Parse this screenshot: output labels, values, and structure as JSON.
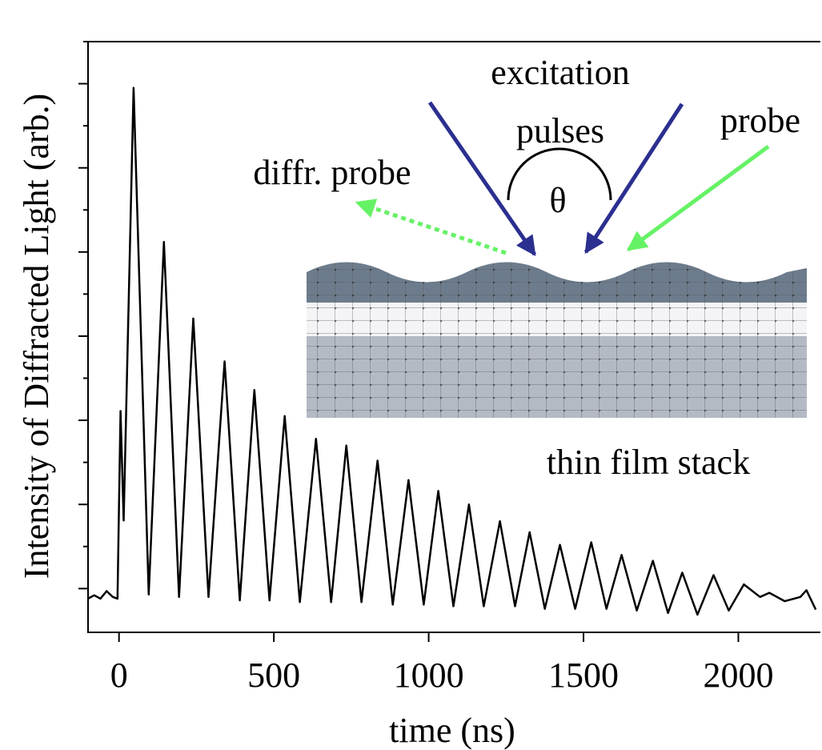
{
  "chart_data": {
    "type": "line",
    "xlabel": "time (ns)",
    "ylabel": "Intensity of Diffracted Light (arb.)",
    "annotations": [
      "excitation",
      "pulses",
      "θ",
      "probe",
      "diffr. probe",
      "thin film stack"
    ],
    "x": [
      -100,
      -80,
      -60,
      -40,
      -20,
      -5,
      5,
      15,
      47,
      96,
      145,
      194,
      240,
      289,
      341,
      390,
      437,
      486,
      535,
      584,
      636,
      685,
      734,
      783,
      835,
      884,
      935,
      984,
      1031,
      1080,
      1130,
      1178,
      1230,
      1279,
      1326,
      1375,
      1424,
      1473,
      1525,
      1574,
      1623,
      1672,
      1724,
      1773,
      1819,
      1868,
      1920,
      1969,
      2018,
      2070,
      2100,
      2150,
      2200,
      2220,
      2250
    ],
    "values": [
      -0.12,
      -0.08,
      -0.12,
      -0.03,
      -0.1,
      -0.12,
      2.11,
      0.81,
      5.95,
      -0.07,
      4.12,
      -0.1,
      3.21,
      -0.1,
      2.7,
      -0.14,
      2.36,
      -0.14,
      2.05,
      -0.16,
      1.78,
      -0.16,
      1.7,
      -0.16,
      1.52,
      -0.19,
      1.29,
      -0.19,
      1.16,
      -0.21,
      1.0,
      -0.21,
      0.8,
      -0.21,
      0.67,
      -0.24,
      0.52,
      -0.24,
      0.55,
      -0.24,
      0.4,
      -0.26,
      0.33,
      -0.29,
      0.19,
      -0.31,
      0.16,
      -0.26,
      0.05,
      -0.1,
      -0.05,
      -0.15,
      -0.1,
      -0.02,
      -0.25
    ],
    "color": "#000000",
    "xlim": [
      -100,
      2265
    ],
    "xticks": [
      0,
      500,
      1000,
      1500,
      2000
    ],
    "ylim": [
      -0.52,
      6.5
    ],
    "yticks": [
      0,
      0.5,
      1,
      1.5,
      2,
      2.5,
      3,
      3.5,
      4,
      4.5,
      5,
      5.5,
      6,
      6.5
    ]
  }
}
